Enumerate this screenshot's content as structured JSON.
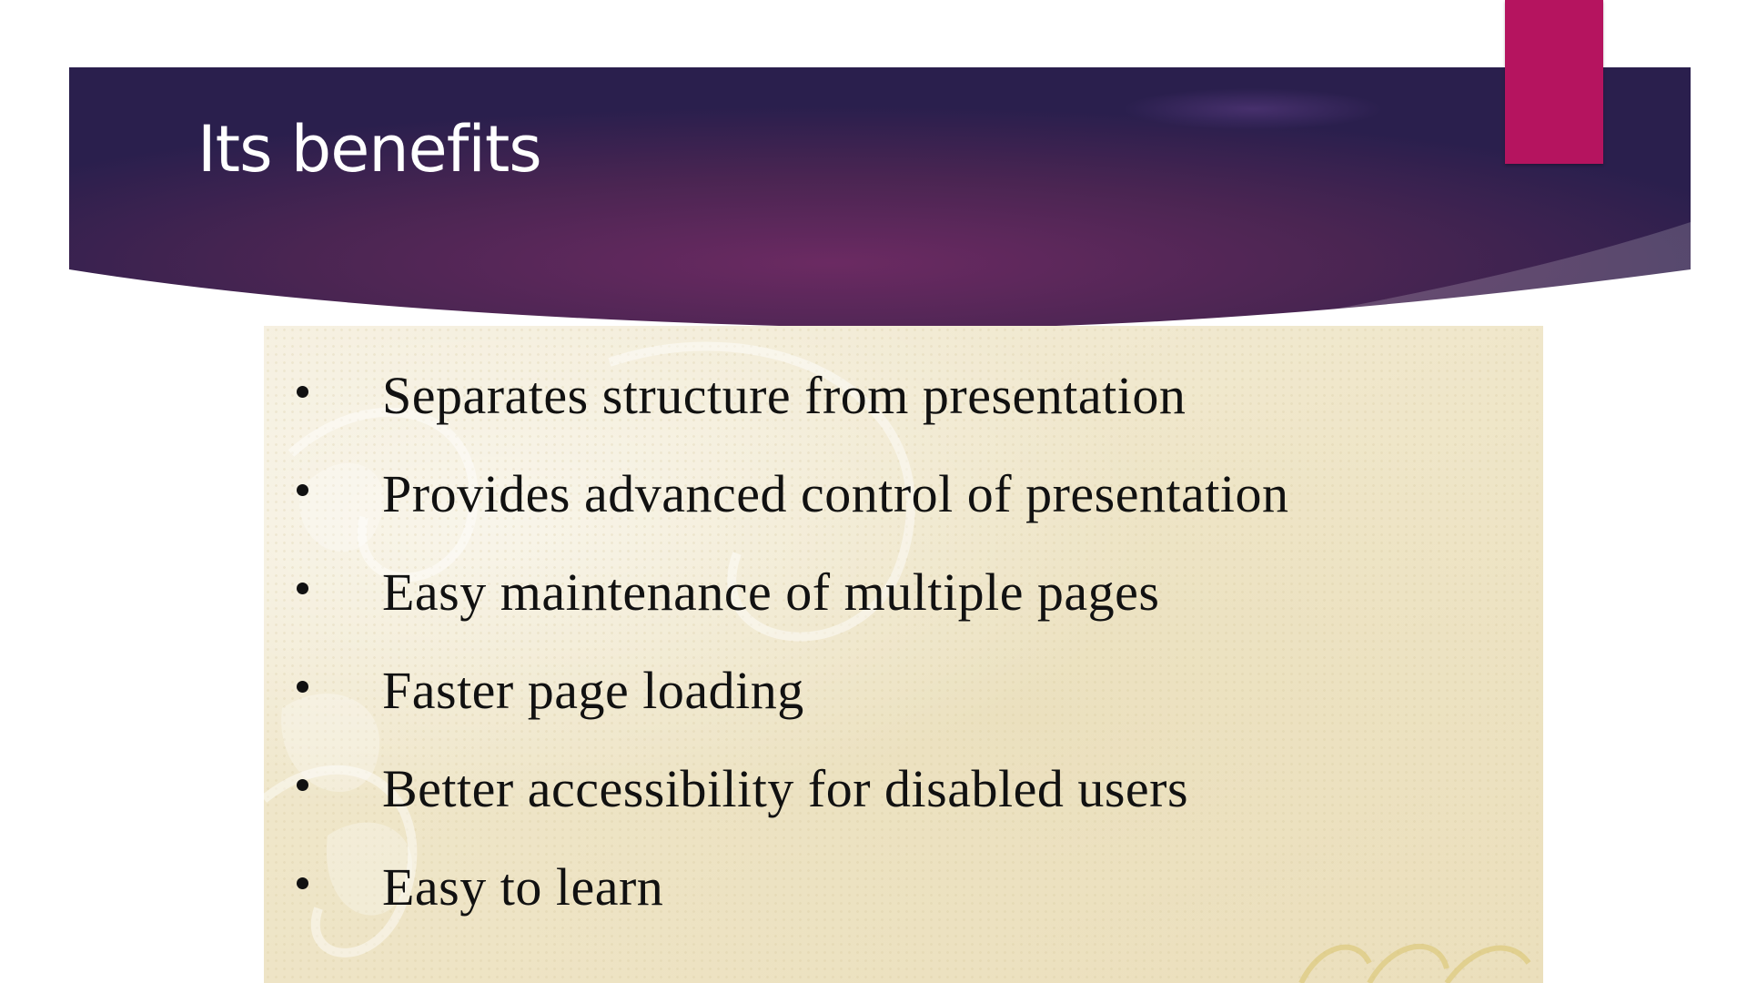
{
  "slide": {
    "title": "Its benefits",
    "bullets": [
      "Separates structure from presentation",
      "Provides advanced control of presentation",
      "Easy maintenance of multiple pages",
      "Faster page loading",
      "Better accessibility for disabled users",
      "Easy to learn"
    ]
  },
  "colors": {
    "banner_dark": "#2a1f4d",
    "banner_mid": "#6b2a62",
    "accent": "#b5145f",
    "panel_bg": "#efe6c9",
    "bullet_text": "#111111"
  }
}
